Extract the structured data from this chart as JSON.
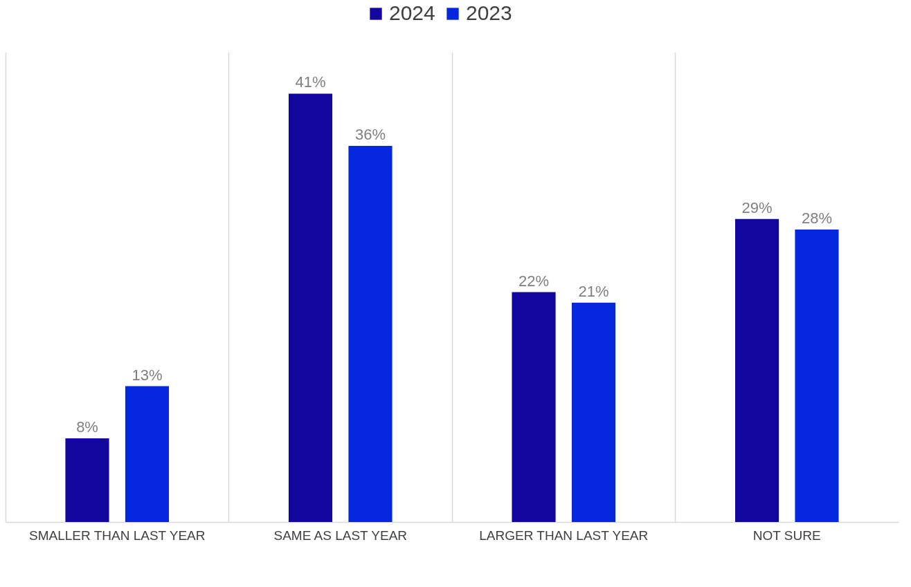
{
  "chart_data": {
    "type": "bar",
    "categories": [
      "SMALLER THAN LAST YEAR",
      "SAME AS LAST YEAR",
      "LARGER THAN LAST YEAR",
      "NOT SURE"
    ],
    "series": [
      {
        "name": "2024",
        "color": "#12069f",
        "values": [
          8,
          41,
          22,
          29
        ],
        "value_labels": [
          "8%",
          "41%",
          "22%",
          "29%"
        ]
      },
      {
        "name": "2023",
        "color": "#0527dd",
        "values": [
          13,
          36,
          21,
          28
        ],
        "value_labels": [
          "13%",
          "36%",
          "21%",
          "28%"
        ]
      }
    ],
    "tick_labels": "x",
    "grid": "x",
    "legend": "top"
  }
}
